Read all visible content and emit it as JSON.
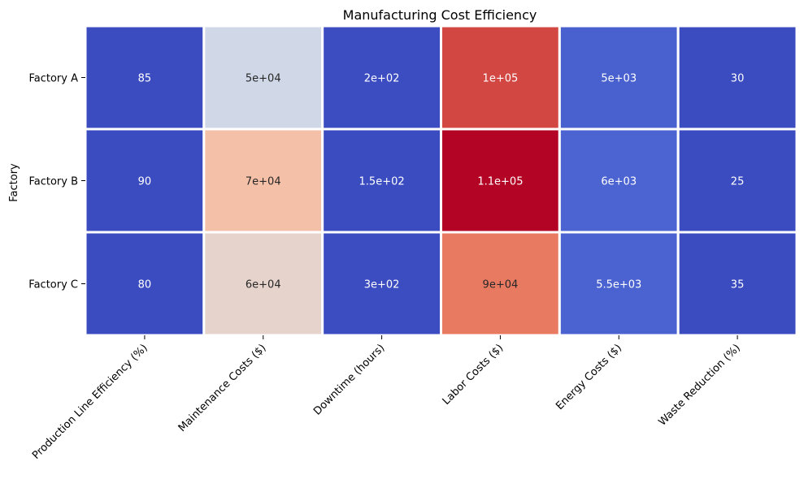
{
  "chart_data": {
    "type": "heatmap",
    "title": "Manufacturing Cost Efficiency",
    "ylabel": "Factory",
    "xlabel": "",
    "rows": [
      "Factory A",
      "Factory B",
      "Factory C"
    ],
    "columns": [
      "Production Line Efficiency (%)",
      "Maintenance Costs ($)",
      "Downtime (hours)",
      "Labor Costs ($)",
      "Energy Costs ($)",
      "Waste Reduction (%)"
    ],
    "values": [
      [
        85,
        50000,
        200,
        100000,
        5000,
        30
      ],
      [
        90,
        70000,
        150,
        110000,
        6000,
        25
      ],
      [
        80,
        60000,
        300,
        90000,
        5500,
        35
      ]
    ],
    "annotations": [
      [
        "85",
        "5e+04",
        "2e+02",
        "1e+05",
        "5e+03",
        "30"
      ],
      [
        "90",
        "7e+04",
        "1.5e+02",
        "1.1e+05",
        "6e+03",
        "25"
      ],
      [
        "80",
        "6e+04",
        "3e+02",
        "9e+04",
        "5.5e+03",
        "35"
      ]
    ],
    "colormap": "coolwarm",
    "colorbar": false,
    "grid": false,
    "cell_border_color": "#ffffff"
  }
}
